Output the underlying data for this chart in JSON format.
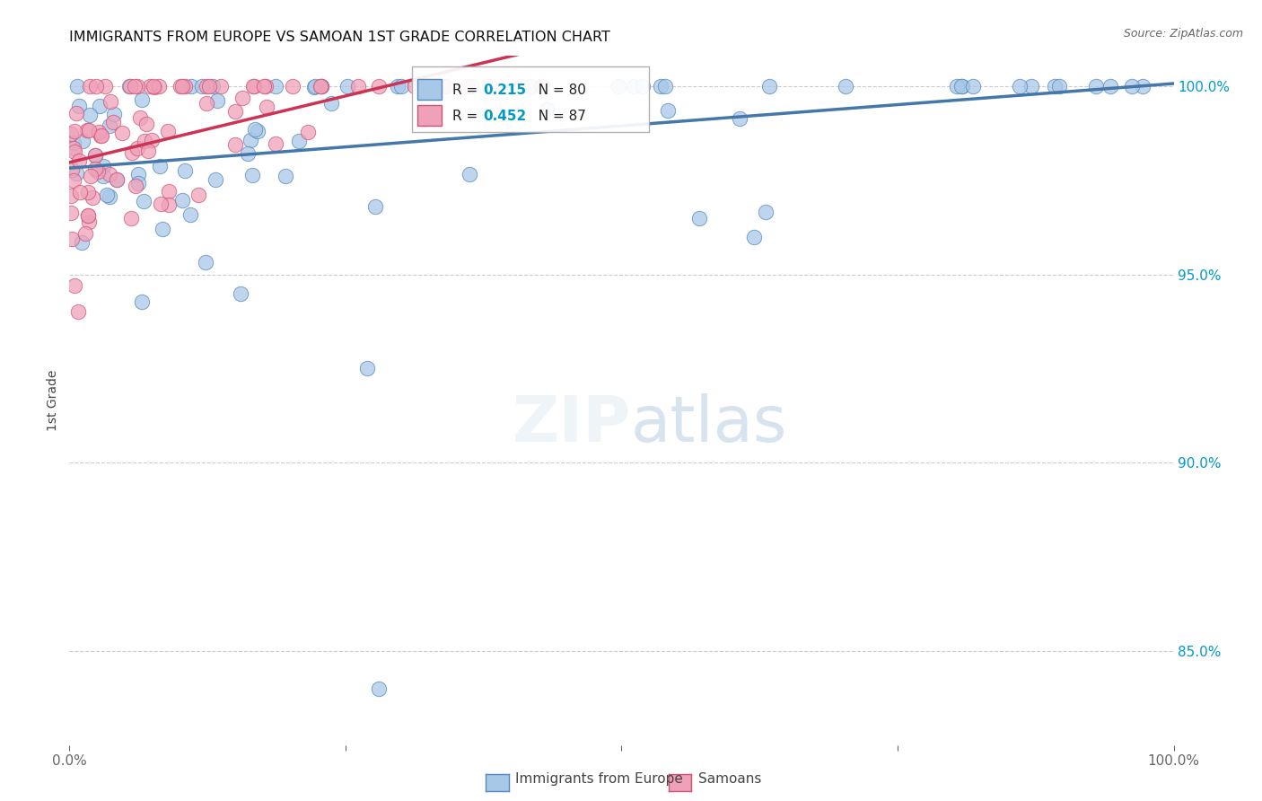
{
  "title": "IMMIGRANTS FROM EUROPE VS SAMOAN 1ST GRADE CORRELATION CHART",
  "source_text": "Source: ZipAtlas.com",
  "ylabel": "1st Grade",
  "right_yticks": [
    1.0,
    0.95,
    0.9,
    0.85
  ],
  "right_yticklabels": [
    "100.0%",
    "95.0%",
    "90.0%",
    "85.0%"
  ],
  "legend_labels": [
    "Immigrants from Europe",
    "Samoans"
  ],
  "legend_R": [
    0.215,
    0.452
  ],
  "legend_N": [
    80,
    87
  ],
  "blue_color": "#A8C8E8",
  "blue_edge": "#5588BB",
  "pink_color": "#F0A0B8",
  "pink_edge": "#CC5577",
  "trendline_blue": "#4477AA",
  "trendline_pink": "#CC3355",
  "r_value_color": "#0099CC",
  "background_color": "#FFFFFF",
  "xlim": [
    0.0,
    1.0
  ],
  "ylim": [
    0.825,
    1.008
  ]
}
